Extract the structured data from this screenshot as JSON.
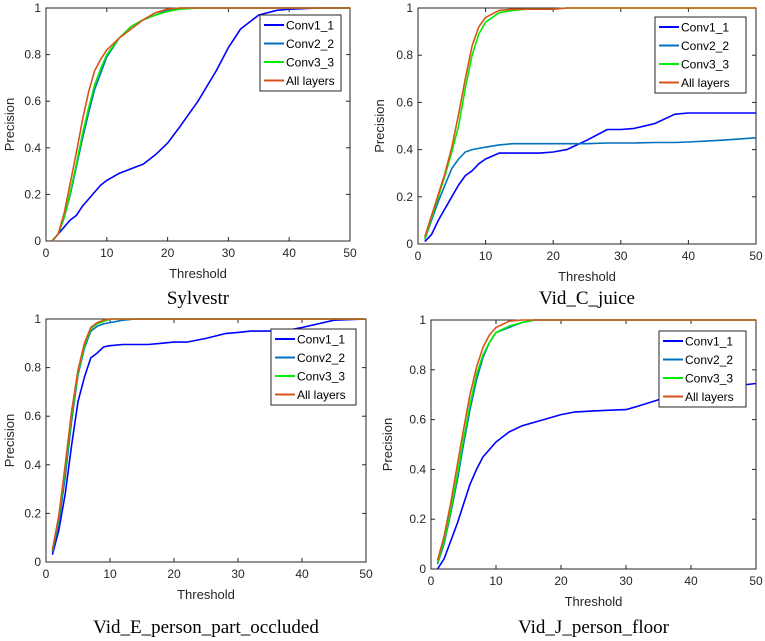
{
  "chart_data": [
    {
      "type": "line",
      "title": "Sylvestr",
      "xlabel": "Threshold",
      "ylabel": "Precision",
      "xlim": [
        0,
        50
      ],
      "ylim": [
        0,
        1
      ],
      "xticks": [
        "0",
        "10",
        "20",
        "30",
        "40",
        "50"
      ],
      "yticks": [
        "0",
        "0.2",
        "0.4",
        "0.6",
        "0.8",
        "1"
      ],
      "legend": "top-right",
      "x": [
        1,
        2,
        3,
        4,
        5,
        6,
        7,
        8,
        9,
        10,
        12,
        14,
        16,
        18,
        20,
        22,
        25,
        28,
        30,
        32,
        35,
        38,
        40,
        45,
        50
      ],
      "series": [
        {
          "name": "Conv1_1",
          "color": "#0000ff",
          "values": [
            0,
            0.03,
            0.06,
            0.09,
            0.11,
            0.15,
            0.18,
            0.21,
            0.24,
            0.26,
            0.29,
            0.31,
            0.33,
            0.37,
            0.42,
            0.49,
            0.6,
            0.73,
            0.83,
            0.91,
            0.97,
            0.99,
            0.995,
            1,
            1
          ]
        },
        {
          "name": "Conv2_2",
          "color": "#0072bd",
          "values": [
            0,
            0.03,
            0.1,
            0.2,
            0.32,
            0.44,
            0.55,
            0.65,
            0.72,
            0.79,
            0.87,
            0.92,
            0.95,
            0.97,
            0.99,
            1,
            1,
            1,
            1,
            1,
            1,
            1,
            1,
            1,
            1
          ]
        },
        {
          "name": "Conv3_3",
          "color": "#00ee00",
          "values": [
            0,
            0.03,
            0.1,
            0.21,
            0.33,
            0.46,
            0.57,
            0.67,
            0.74,
            0.8,
            0.87,
            0.92,
            0.95,
            0.97,
            0.985,
            0.995,
            1,
            1,
            1,
            1,
            1,
            1,
            1,
            1,
            1
          ]
        },
        {
          "name": "All layers",
          "color": "#d95319",
          "values": [
            0,
            0.03,
            0.12,
            0.25,
            0.38,
            0.52,
            0.64,
            0.73,
            0.78,
            0.82,
            0.87,
            0.91,
            0.95,
            0.98,
            0.995,
            1,
            1,
            1,
            1,
            1,
            1,
            1,
            1,
            1,
            1
          ]
        }
      ]
    },
    {
      "type": "line",
      "title": "Vid_C_juice",
      "xlabel": "Threshold",
      "ylabel": "Precision",
      "xlim": [
        0,
        50
      ],
      "ylim": [
        0,
        1
      ],
      "xticks": [
        "0",
        "10",
        "20",
        "30",
        "40",
        "50"
      ],
      "yticks": [
        "0",
        "0.2",
        "0.4",
        "0.6",
        "0.8",
        "1"
      ],
      "legend": "top-right",
      "x": [
        1,
        2,
        3,
        4,
        5,
        6,
        7,
        8,
        9,
        10,
        12,
        14,
        16,
        18,
        20,
        22,
        25,
        28,
        30,
        32,
        35,
        38,
        40,
        45,
        50
      ],
      "series": [
        {
          "name": "Conv1_1",
          "color": "#0000ff",
          "values": [
            0.01,
            0.04,
            0.1,
            0.15,
            0.2,
            0.25,
            0.29,
            0.31,
            0.34,
            0.36,
            0.385,
            0.385,
            0.385,
            0.385,
            0.39,
            0.4,
            0.44,
            0.485,
            0.485,
            0.49,
            0.51,
            0.55,
            0.555,
            0.555,
            0.555
          ]
        },
        {
          "name": "Conv2_2",
          "color": "#0072bd",
          "values": [
            0.02,
            0.1,
            0.18,
            0.25,
            0.32,
            0.36,
            0.39,
            0.4,
            0.405,
            0.41,
            0.42,
            0.425,
            0.425,
            0.425,
            0.425,
            0.425,
            0.425,
            0.428,
            0.428,
            0.428,
            0.43,
            0.43,
            0.432,
            0.44,
            0.45
          ]
        },
        {
          "name": "Conv3_3",
          "color": "#00ee00",
          "values": [
            0.02,
            0.11,
            0.2,
            0.29,
            0.39,
            0.5,
            0.66,
            0.8,
            0.89,
            0.94,
            0.98,
            0.99,
            0.995,
            0.995,
            0.995,
            1,
            1,
            1,
            1,
            1,
            1,
            1,
            1,
            1,
            1
          ]
        },
        {
          "name": "All layers",
          "color": "#d95319",
          "values": [
            0.03,
            0.12,
            0.21,
            0.3,
            0.41,
            0.55,
            0.7,
            0.84,
            0.92,
            0.96,
            0.99,
            0.995,
            0.995,
            0.995,
            0.995,
            1,
            1,
            1,
            1,
            1,
            1,
            1,
            1,
            1,
            1
          ]
        }
      ]
    },
    {
      "type": "line",
      "title": "Vid_E_person_part_occluded",
      "xlabel": "Threshold",
      "ylabel": "Precision",
      "xlim": [
        0,
        50
      ],
      "ylim": [
        0,
        1
      ],
      "xticks": [
        "0",
        "10",
        "20",
        "30",
        "40",
        "50"
      ],
      "yticks": [
        "0",
        "0.2",
        "0.4",
        "0.6",
        "0.8",
        "1"
      ],
      "legend": "top-right",
      "x": [
        1,
        2,
        3,
        4,
        5,
        6,
        7,
        8,
        9,
        10,
        12,
        14,
        16,
        18,
        20,
        22,
        25,
        28,
        30,
        32,
        35,
        38,
        40,
        45,
        50
      ],
      "series": [
        {
          "name": "Conv1_1",
          "color": "#0000ff",
          "values": [
            0.03,
            0.13,
            0.28,
            0.48,
            0.66,
            0.76,
            0.84,
            0.86,
            0.885,
            0.89,
            0.895,
            0.895,
            0.895,
            0.9,
            0.905,
            0.905,
            0.92,
            0.94,
            0.945,
            0.95,
            0.95,
            0.955,
            0.965,
            0.995,
            1
          ]
        },
        {
          "name": "Conv2_2",
          "color": "#0072bd",
          "values": [
            0.04,
            0.16,
            0.35,
            0.58,
            0.77,
            0.88,
            0.95,
            0.97,
            0.98,
            0.985,
            0.995,
            1,
            1,
            1,
            1,
            1,
            1,
            1,
            1,
            1,
            1,
            1,
            1,
            1,
            1
          ]
        },
        {
          "name": "Conv3_3",
          "color": "#00ee00",
          "values": [
            0.05,
            0.18,
            0.38,
            0.6,
            0.78,
            0.89,
            0.96,
            0.98,
            0.99,
            1,
            1,
            1,
            1,
            1,
            1,
            1,
            1,
            1,
            1,
            1,
            1,
            1,
            1,
            1,
            1
          ]
        },
        {
          "name": "All layers",
          "color": "#d95319",
          "values": [
            0.05,
            0.19,
            0.4,
            0.62,
            0.79,
            0.9,
            0.965,
            0.985,
            0.995,
            1,
            1,
            1,
            1,
            1,
            1,
            1,
            1,
            1,
            1,
            1,
            1,
            1,
            1,
            1,
            1
          ]
        }
      ]
    },
    {
      "type": "line",
      "title": "Vid_J_person_floor",
      "xlabel": "Threshold",
      "ylabel": "Precision",
      "xlim": [
        0,
        50
      ],
      "ylim": [
        0,
        1
      ],
      "xticks": [
        "0",
        "10",
        "20",
        "30",
        "40",
        "50"
      ],
      "yticks": [
        "0",
        "0.2",
        "0.4",
        "0.6",
        "0.8",
        "1"
      ],
      "legend": "top-right",
      "x": [
        1,
        2,
        3,
        4,
        5,
        6,
        7,
        8,
        9,
        10,
        12,
        14,
        16,
        18,
        20,
        22,
        25,
        28,
        30,
        32,
        35,
        38,
        40,
        45,
        50
      ],
      "series": [
        {
          "name": "Conv1_1",
          "color": "#0000ff",
          "values": [
            0,
            0.04,
            0.11,
            0.18,
            0.26,
            0.34,
            0.4,
            0.45,
            0.48,
            0.51,
            0.55,
            0.575,
            0.59,
            0.605,
            0.62,
            0.63,
            0.635,
            0.638,
            0.64,
            0.655,
            0.68,
            0.7,
            0.71,
            0.73,
            0.745
          ]
        },
        {
          "name": "Conv2_2",
          "color": "#0072bd",
          "values": [
            0.02,
            0.1,
            0.22,
            0.35,
            0.5,
            0.64,
            0.76,
            0.85,
            0.91,
            0.95,
            0.97,
            0.99,
            1,
            1,
            1,
            1,
            1,
            1,
            1,
            1,
            1,
            1,
            1,
            1,
            1
          ]
        },
        {
          "name": "Conv3_3",
          "color": "#00ee00",
          "values": [
            0.025,
            0.11,
            0.23,
            0.37,
            0.52,
            0.66,
            0.78,
            0.86,
            0.91,
            0.95,
            0.975,
            0.99,
            1,
            1,
            1,
            1,
            1,
            1,
            1,
            1,
            1,
            1,
            1,
            1,
            1
          ]
        },
        {
          "name": "All layers",
          "color": "#d95319",
          "values": [
            0.035,
            0.13,
            0.26,
            0.41,
            0.56,
            0.7,
            0.81,
            0.89,
            0.94,
            0.97,
            0.995,
            1,
            1,
            1,
            1,
            1,
            1,
            1,
            1,
            1,
            1,
            1,
            1,
            1,
            1
          ]
        }
      ]
    }
  ]
}
